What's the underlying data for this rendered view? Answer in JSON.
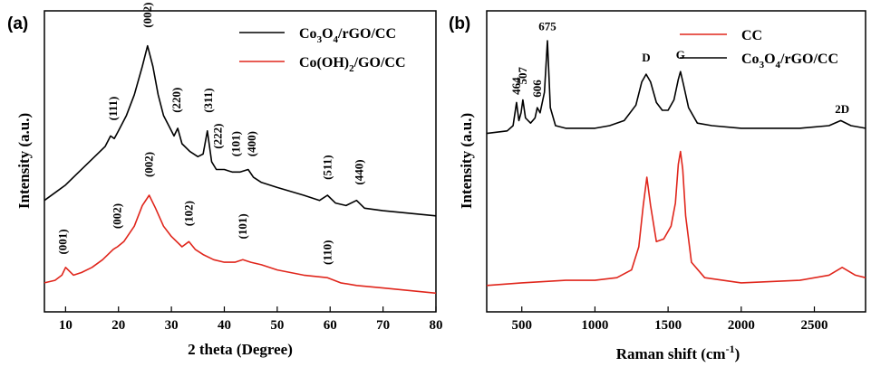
{
  "chart_data": [
    {
      "type": "line",
      "panel_label": "(a)",
      "xlabel": "2 theta (Degree)",
      "ylabel": "Intensity (a.u.)",
      "xlim": [
        6,
        80
      ],
      "x_ticks": [
        "10",
        "20",
        "30",
        "40",
        "50",
        "60",
        "70",
        "80"
      ],
      "y_ticks_labeled": false,
      "legend_position": "top-right",
      "series": [
        {
          "name": "Co3O4/rGO/CC",
          "color": "#000000",
          "x": [
            6,
            8,
            10,
            12,
            14,
            16,
            17.5,
            18.5,
            19.2,
            20,
            21.5,
            23,
            24.5,
            25.5,
            26.5,
            27.5,
            28.5,
            29.5,
            30.5,
            31.2,
            32,
            33.5,
            35,
            36,
            36.8,
            37.6,
            38.5,
            40,
            41.5,
            43,
            44.5,
            45.5,
            47,
            50,
            55,
            58,
            59.5,
            61,
            63,
            65,
            66.5,
            70,
            75,
            80
          ],
          "y": [
            0.38,
            0.41,
            0.44,
            0.48,
            0.52,
            0.56,
            0.59,
            0.63,
            0.62,
            0.65,
            0.71,
            0.79,
            0.9,
            0.98,
            0.9,
            0.79,
            0.71,
            0.67,
            0.63,
            0.66,
            0.6,
            0.57,
            0.55,
            0.56,
            0.65,
            0.53,
            0.5,
            0.5,
            0.49,
            0.49,
            0.5,
            0.47,
            0.45,
            0.43,
            0.4,
            0.38,
            0.4,
            0.37,
            0.36,
            0.38,
            0.35,
            0.34,
            0.33,
            0.32
          ]
        },
        {
          "name": "Co(OH)2/GO/CC",
          "color": "#e0261c",
          "x": [
            6,
            8,
            9.3,
            10,
            11.5,
            13,
            15,
            17,
            19,
            19.8,
            21,
            23,
            24.5,
            25.8,
            27,
            28.5,
            30,
            32,
            33.3,
            34.5,
            36,
            38,
            40,
            42,
            43.5,
            45,
            47,
            50,
            55,
            59.5,
            62,
            65,
            70,
            75,
            80
          ],
          "y": [
            0.06,
            0.07,
            0.09,
            0.12,
            0.09,
            0.1,
            0.12,
            0.15,
            0.19,
            0.2,
            0.22,
            0.28,
            0.36,
            0.4,
            0.35,
            0.28,
            0.24,
            0.2,
            0.22,
            0.19,
            0.17,
            0.15,
            0.14,
            0.14,
            0.15,
            0.14,
            0.13,
            0.11,
            0.09,
            0.08,
            0.06,
            0.05,
            0.04,
            0.03,
            0.02
          ]
        }
      ],
      "annotations": [
        {
          "text": "(111)",
          "x": 19,
          "y": 0.69
        },
        {
          "text": "(002)",
          "x": 25.5,
          "y": 1.05
        },
        {
          "text": "(220)",
          "x": 31,
          "y": 0.72
        },
        {
          "text": "(311)",
          "x": 37,
          "y": 0.72
        },
        {
          "text": "(222)",
          "x": 38.8,
          "y": 0.58
        },
        {
          "text": "(101)",
          "x": 42.2,
          "y": 0.55
        },
        {
          "text": "(400)",
          "x": 45.2,
          "y": 0.55
        },
        {
          "text": "(511)",
          "x": 59.5,
          "y": 0.46
        },
        {
          "text": "(440)",
          "x": 65.5,
          "y": 0.44
        },
        {
          "text": "(001)",
          "x": 9.5,
          "y": 0.17
        },
        {
          "text": "(002)",
          "x": 19.8,
          "y": 0.27
        },
        {
          "text": "(002)",
          "x": 25.8,
          "y": 0.47
        },
        {
          "text": "(102)",
          "x": 33.3,
          "y": 0.28
        },
        {
          "text": "(101)",
          "x": 43.5,
          "y": 0.23
        },
        {
          "text": "(110)",
          "x": 59.5,
          "y": 0.13
        }
      ]
    },
    {
      "type": "line",
      "panel_label": "(b)",
      "xlabel": "Raman shift (cm",
      "xlabel_sup": "-1",
      "xlabel_end": ")",
      "ylabel": "Intensity (a.u.)",
      "xlim": [
        260,
        2850
      ],
      "x_ticks": [
        "500",
        "1000",
        "1500",
        "2000",
        "2500"
      ],
      "y_ticks_labeled": false,
      "legend_position": "top-right",
      "series": [
        {
          "name": "CC",
          "color": "#e0261c",
          "x": [
            260,
            500,
            800,
            1000,
            1150,
            1250,
            1300,
            1330,
            1355,
            1380,
            1420,
            1470,
            1520,
            1550,
            1570,
            1585,
            1600,
            1620,
            1660,
            1750,
            2000,
            2400,
            2600,
            2690,
            2780,
            2850
          ],
          "y": [
            0.05,
            0.06,
            0.07,
            0.07,
            0.08,
            0.11,
            0.2,
            0.36,
            0.47,
            0.36,
            0.22,
            0.23,
            0.28,
            0.37,
            0.52,
            0.57,
            0.5,
            0.32,
            0.14,
            0.08,
            0.06,
            0.07,
            0.09,
            0.12,
            0.09,
            0.08
          ]
        },
        {
          "name": "Co3O4/rGO/CC",
          "color": "#000000",
          "x": [
            260,
            400,
            440,
            464,
            480,
            495,
            507,
            525,
            560,
            590,
            606,
            625,
            655,
            675,
            695,
            730,
            800,
            1000,
            1100,
            1200,
            1280,
            1320,
            1350,
            1380,
            1420,
            1460,
            1500,
            1540,
            1570,
            1585,
            1605,
            1640,
            1700,
            1800,
            2000,
            2400,
            2600,
            2680,
            2750,
            2850
          ],
          "y": [
            0.64,
            0.65,
            0.67,
            0.76,
            0.69,
            0.72,
            0.77,
            0.7,
            0.68,
            0.7,
            0.74,
            0.72,
            0.8,
            1.0,
            0.74,
            0.67,
            0.66,
            0.66,
            0.67,
            0.69,
            0.75,
            0.84,
            0.87,
            0.84,
            0.76,
            0.73,
            0.73,
            0.77,
            0.85,
            0.88,
            0.83,
            0.74,
            0.68,
            0.67,
            0.66,
            0.66,
            0.67,
            0.69,
            0.67,
            0.66
          ]
        }
      ],
      "annotations": [
        {
          "text": "464",
          "x": 464,
          "y": 0.79
        },
        {
          "text": "507",
          "x": 507,
          "y": 0.83
        },
        {
          "text": "606",
          "x": 606,
          "y": 0.78
        },
        {
          "text": "675",
          "x": 675,
          "y": 1.04
        },
        {
          "text": "D",
          "x": 1350,
          "y": 0.92
        },
        {
          "text": "G",
          "x": 1585,
          "y": 0.93
        },
        {
          "text": "2D",
          "x": 2690,
          "y": 0.72
        }
      ]
    }
  ]
}
